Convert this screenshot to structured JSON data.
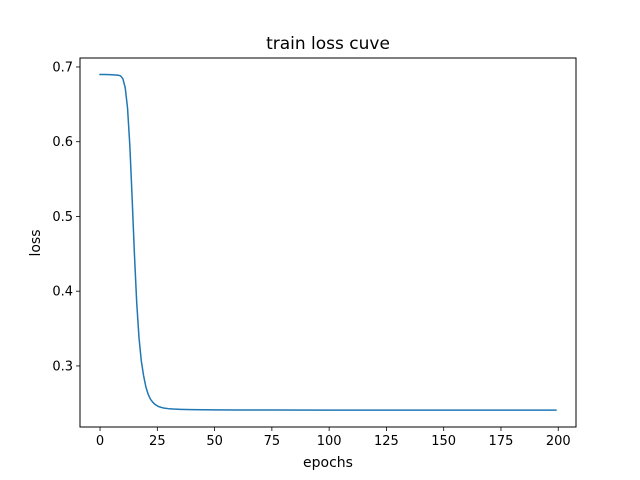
{
  "chart_data": {
    "type": "line",
    "title": "train loss cuve",
    "xlabel": "epochs",
    "ylabel": "loss",
    "xlim": [
      -8.75,
      207.75
    ],
    "ylim": [
      0.2183,
      0.712
    ],
    "xticks": [
      0,
      25,
      50,
      75,
      100,
      125,
      150,
      175,
      200
    ],
    "yticks": [
      0.3,
      0.4,
      0.5,
      0.6,
      0.7
    ],
    "grid": false,
    "legend": false,
    "series": [
      {
        "color": "#1f77b4",
        "x": [
          0,
          2,
          4,
          6,
          8,
          9,
          10,
          11,
          12,
          13,
          14,
          15,
          16,
          17,
          18,
          19,
          20,
          21,
          22,
          23,
          24,
          25,
          26,
          27,
          28,
          30,
          32,
          35,
          40,
          45,
          50,
          60,
          75,
          100,
          125,
          150,
          175,
          199
        ],
        "y": [
          0.69,
          0.69,
          0.6898,
          0.6895,
          0.689,
          0.688,
          0.684,
          0.672,
          0.645,
          0.595,
          0.525,
          0.45,
          0.385,
          0.338,
          0.307,
          0.287,
          0.272,
          0.262,
          0.2555,
          0.2515,
          0.2485,
          0.2465,
          0.2452,
          0.2443,
          0.2435,
          0.2428,
          0.2423,
          0.2419,
          0.2415,
          0.2413,
          0.2412,
          0.2411,
          0.241,
          0.2409,
          0.2409,
          0.2409,
          0.2409,
          0.2409
        ]
      }
    ]
  }
}
